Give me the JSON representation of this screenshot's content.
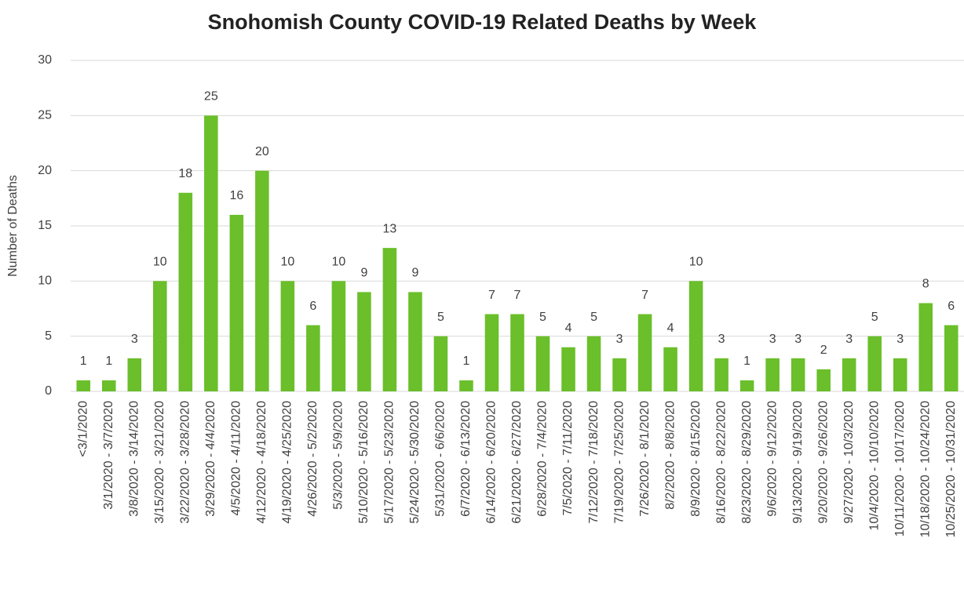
{
  "chart_data": {
    "type": "bar",
    "title": "Snohomish County COVID-19 Related Deaths by Week",
    "y_label": "Number of Deaths",
    "categories": [
      "<3/1/2020",
      "3/1/2020 - 3/7/2020",
      "3/8/2020 - 3/14/2020",
      "3/15/2020 - 3/21/2020",
      "3/22/2020 - 3/28/2020",
      "3/29/2020 - 4/4/2020",
      "4/5/2020 - 4/11/2020",
      "4/12/2020 - 4/18/2020",
      "4/19/2020 - 4/25/2020",
      "4/26/2020 - 5/2/2020",
      "5/3/2020 - 5/9/2020",
      "5/10/2020 - 5/16/2020",
      "5/17/2020 - 5/23/2020",
      "5/24/2020 - 5/30/2020",
      "5/31/2020 - 6/6/2020",
      "6/7/2020 - 6/13/2020",
      "6/14/2020 - 6/20/2020",
      "6/21/2020 - 6/27/2020",
      "6/28/2020 - 7/4/2020",
      "7/5/2020 - 7/11/2020",
      "7/12/2020 - 7/18/2020",
      "7/19/2020 - 7/25/2020",
      "7/26/2020 - 8/1/2020",
      "8/2/2020 - 8/8/2020",
      "8/9/2020 - 8/15/2020",
      "8/16/2020 - 8/22/2020",
      "8/23/2020 - 8/29/2020",
      "9/6/2020 - 9/12/2020",
      "9/13/2020 - 9/19/2020",
      "9/20/2020 - 9/26/2020",
      "9/27/2020 - 10/3/2020",
      "10/4/2020 - 10/10/2020",
      "10/11/2020 - 10/17/2020",
      "10/18/2020 - 10/24/2020",
      "10/25/2020 - 10/31/2020"
    ],
    "values": [
      1,
      1,
      3,
      10,
      18,
      25,
      16,
      20,
      10,
      6,
      10,
      9,
      13,
      9,
      5,
      1,
      7,
      7,
      5,
      4,
      5,
      3,
      7,
      4,
      10,
      3,
      1,
      3,
      3,
      2,
      3,
      5,
      3,
      8,
      6
    ],
    "color": "#6abf2a",
    "ylim": [
      0,
      30
    ],
    "yticks": [
      0,
      5,
      10,
      15,
      20,
      25,
      30
    ],
    "grid": true
  }
}
